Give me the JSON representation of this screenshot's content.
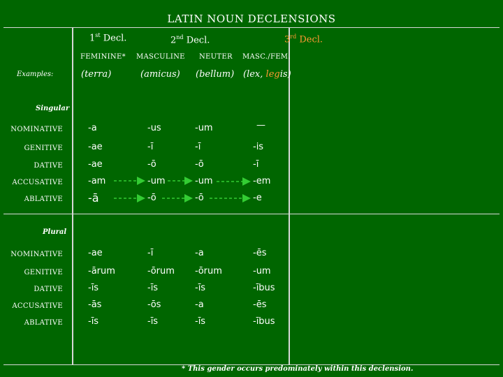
{
  "title": "LATIN NOUN DECLENSIONS",
  "declensions": {
    "first": {
      "ordinal": "1",
      "suffix": "st",
      "label": " Decl."
    },
    "second": {
      "ordinal": "2",
      "suffix": "nd",
      "label": " Decl."
    },
    "third": {
      "ordinal": "3",
      "suffix": "rd",
      "label": " Decl."
    }
  },
  "genders": [
    "FEMININE*",
    "MASCULINE",
    "NEUTER",
    "MASC./FEM."
  ],
  "examples": {
    "label": "Examples:",
    "items": [
      {
        "pre": "(",
        "word": "terra",
        "post": ")"
      },
      {
        "pre": "(",
        "word": "amicus",
        "post": ")"
      },
      {
        "pre": "(",
        "word": "bellum",
        "post": ")"
      },
      {
        "pre": "(",
        "word": "lex, ",
        "stem": "leg",
        "ending": "is",
        "post": ")"
      }
    ]
  },
  "singular": {
    "label": "Singular",
    "rows": [
      {
        "case": "NOMINATIVE",
        "endings": [
          "-a",
          "-us",
          "-um",
          "—"
        ]
      },
      {
        "case": "GENITIVE",
        "endings": [
          "-ae",
          "-ī",
          "-ī",
          "-is"
        ]
      },
      {
        "case": "DATIVE",
        "endings": [
          "-ae",
          "-ō",
          "-ō",
          "-ī"
        ]
      },
      {
        "case": "ACCUSATIVE",
        "endings": [
          "-am",
          "-um",
          "-um",
          "-em"
        ]
      },
      {
        "case": "ABLATIVE",
        "endings": [
          "-ā",
          "-ō",
          "-ō",
          "-e"
        ]
      }
    ]
  },
  "plural": {
    "label": "Plural",
    "rows": [
      {
        "case": "NOMINATIVE",
        "endings": [
          "-ae",
          "-ī",
          "-a",
          "-ēs"
        ]
      },
      {
        "case": "GENITIVE",
        "endings": [
          "-ārum",
          "-ōrum",
          "-ōrum",
          "-um"
        ]
      },
      {
        "case": "DATIVE",
        "endings": [
          "-īs",
          "-īs",
          "-īs",
          "-ībus"
        ]
      },
      {
        "case": "ACCUSATIVE",
        "endings": [
          "-ās",
          "-ōs",
          "-a",
          "-ēs"
        ]
      },
      {
        "case": "ABLATIVE",
        "endings": [
          "-īs",
          "-īs",
          "-īs",
          "-ībus"
        ]
      }
    ]
  },
  "footnote": "* This gender occurs predominately within this declension.",
  "colors": {
    "background": "#006600",
    "text": "#ffffff",
    "accent": "#ff9933",
    "arrow": "#33cc33",
    "rule": "#d8d8d8"
  }
}
